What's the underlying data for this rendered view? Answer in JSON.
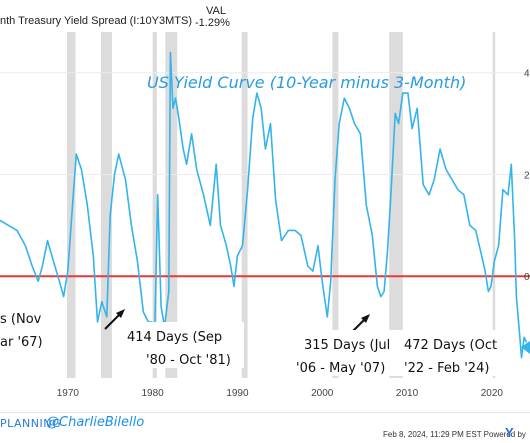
{
  "header": {
    "series_label": "nth Treasury Yield Spread (I:10Y3MTS)",
    "val_label": "VAL",
    "val_value": "-1.29%"
  },
  "chart_data": {
    "type": "line",
    "title": "US Yield Curve (10-Year minus 3-Month)",
    "x_ticks": [
      "1970",
      "1980",
      "1990",
      "2000",
      "2010",
      "2020"
    ],
    "y_ticks_right": [
      "4",
      "2",
      "0"
    ],
    "zero_line_color": "#e53935",
    "line_color": "#34b4ea",
    "recession_color": "#dcdcdc",
    "xlim": [
      1962,
      2024.5
    ],
    "ylim": [
      -2.0,
      4.8
    ],
    "recessions": [
      [
        1969.9,
        1970.9
      ],
      [
        1973.9,
        1975.2
      ],
      [
        1980.0,
        1980.5
      ],
      [
        1981.5,
        1982.9
      ],
      [
        1990.5,
        1991.2
      ],
      [
        2001.2,
        2001.9
      ],
      [
        2007.9,
        2009.5
      ],
      [
        2020.1,
        2020.4
      ]
    ],
    "series": [
      {
        "x": [
          1962.0,
          1963.0,
          1964.0,
          1965.0,
          1965.8,
          1966.5,
          1967.0,
          1967.6,
          1968.3,
          1969.0,
          1969.5,
          1970.0,
          1970.6,
          1971.0,
          1971.6,
          1972.3,
          1973.0,
          1973.5,
          1974.0,
          1974.6,
          1975.0,
          1975.5,
          1976.0,
          1976.8,
          1977.5,
          1978.2,
          1978.9,
          1979.5,
          1979.9,
          1980.2,
          1980.6,
          1981.0,
          1981.4,
          1981.9,
          1982.1,
          1982.4,
          1982.7,
          1983.1,
          1983.6,
          1984.0,
          1984.6,
          1985.2,
          1986.0,
          1986.8,
          1987.5,
          1988.0,
          1988.7,
          1989.2,
          1989.6,
          1990.0,
          1990.6,
          1991.2,
          1991.8,
          1992.3,
          1992.8,
          1993.3,
          1993.9,
          1994.5,
          1995.2,
          1996.0,
          1996.8,
          1997.5,
          1998.3,
          1998.9,
          1999.5,
          2000.0,
          2000.6,
          2001.0,
          2001.5,
          2002.0,
          2002.6,
          2003.2,
          2003.8,
          2004.5,
          2005.2,
          2005.9,
          2006.5,
          2006.9,
          2007.3,
          2007.7,
          2008.1,
          2008.6,
          2009.0,
          2009.5,
          2010.1,
          2010.6,
          2011.2,
          2011.9,
          2012.6,
          2013.2,
          2013.9,
          2014.6,
          2015.3,
          2016.0,
          2016.7,
          2017.4,
          2018.1,
          2018.8,
          2019.2,
          2019.6,
          2019.9,
          2020.3,
          2020.8,
          2021.3,
          2021.9,
          2022.3,
          2022.7,
          2022.9,
          2023.2,
          2023.5,
          2023.8,
          2024.1
        ],
        "y": [
          1.1,
          1.0,
          0.9,
          0.6,
          0.2,
          -0.1,
          0.2,
          0.7,
          0.3,
          -0.1,
          -0.4,
          0.1,
          1.5,
          2.4,
          2.1,
          1.4,
          0.4,
          -0.9,
          -0.5,
          -0.8,
          1.2,
          2.0,
          2.4,
          1.9,
          1.0,
          0.3,
          -0.7,
          -0.9,
          -0.9,
          -1.5,
          1.6,
          -0.6,
          -1.0,
          -0.3,
          4.4,
          3.3,
          3.5,
          3.1,
          2.5,
          2.2,
          2.8,
          2.1,
          1.6,
          1.0,
          2.2,
          1.0,
          0.6,
          0.2,
          -0.2,
          0.4,
          0.6,
          1.7,
          3.1,
          3.6,
          3.3,
          2.5,
          3.0,
          1.5,
          0.7,
          0.9,
          0.9,
          0.8,
          0.2,
          0.1,
          0.6,
          -0.1,
          -0.8,
          -0.1,
          1.9,
          3.0,
          3.5,
          3.3,
          3.0,
          2.8,
          1.4,
          0.8,
          -0.2,
          -0.4,
          -0.3,
          0.5,
          1.6,
          3.2,
          3.0,
          3.6,
          3.6,
          2.9,
          3.3,
          1.8,
          1.6,
          1.9,
          2.5,
          2.1,
          1.9,
          1.7,
          1.6,
          1.0,
          0.9,
          0.4,
          0.1,
          -0.3,
          -0.2,
          0.3,
          0.6,
          1.7,
          1.6,
          2.2,
          0.7,
          -0.4,
          -1.0,
          -1.6,
          -1.2,
          -1.3
        ]
      }
    ]
  },
  "annotations": {
    "a1_line1": "s (Nov",
    "a1_line2": "ar '67)",
    "a2_line1": "414 Days (Sep",
    "a2_line2": "'80 - Oct '81)",
    "a3_line1": "315 Days (Jul",
    "a3_line2": "'06 - May '07)",
    "a4_line1": "472 Days (Oct",
    "a4_line2": "'22 - Feb '24)"
  },
  "footer": {
    "brand": "PLANNING",
    "handle": "@CharlieBilello",
    "timestamp": "Feb 8, 2024, 11:29 PM EST Powered by",
    "logo_letter": "Y"
  }
}
